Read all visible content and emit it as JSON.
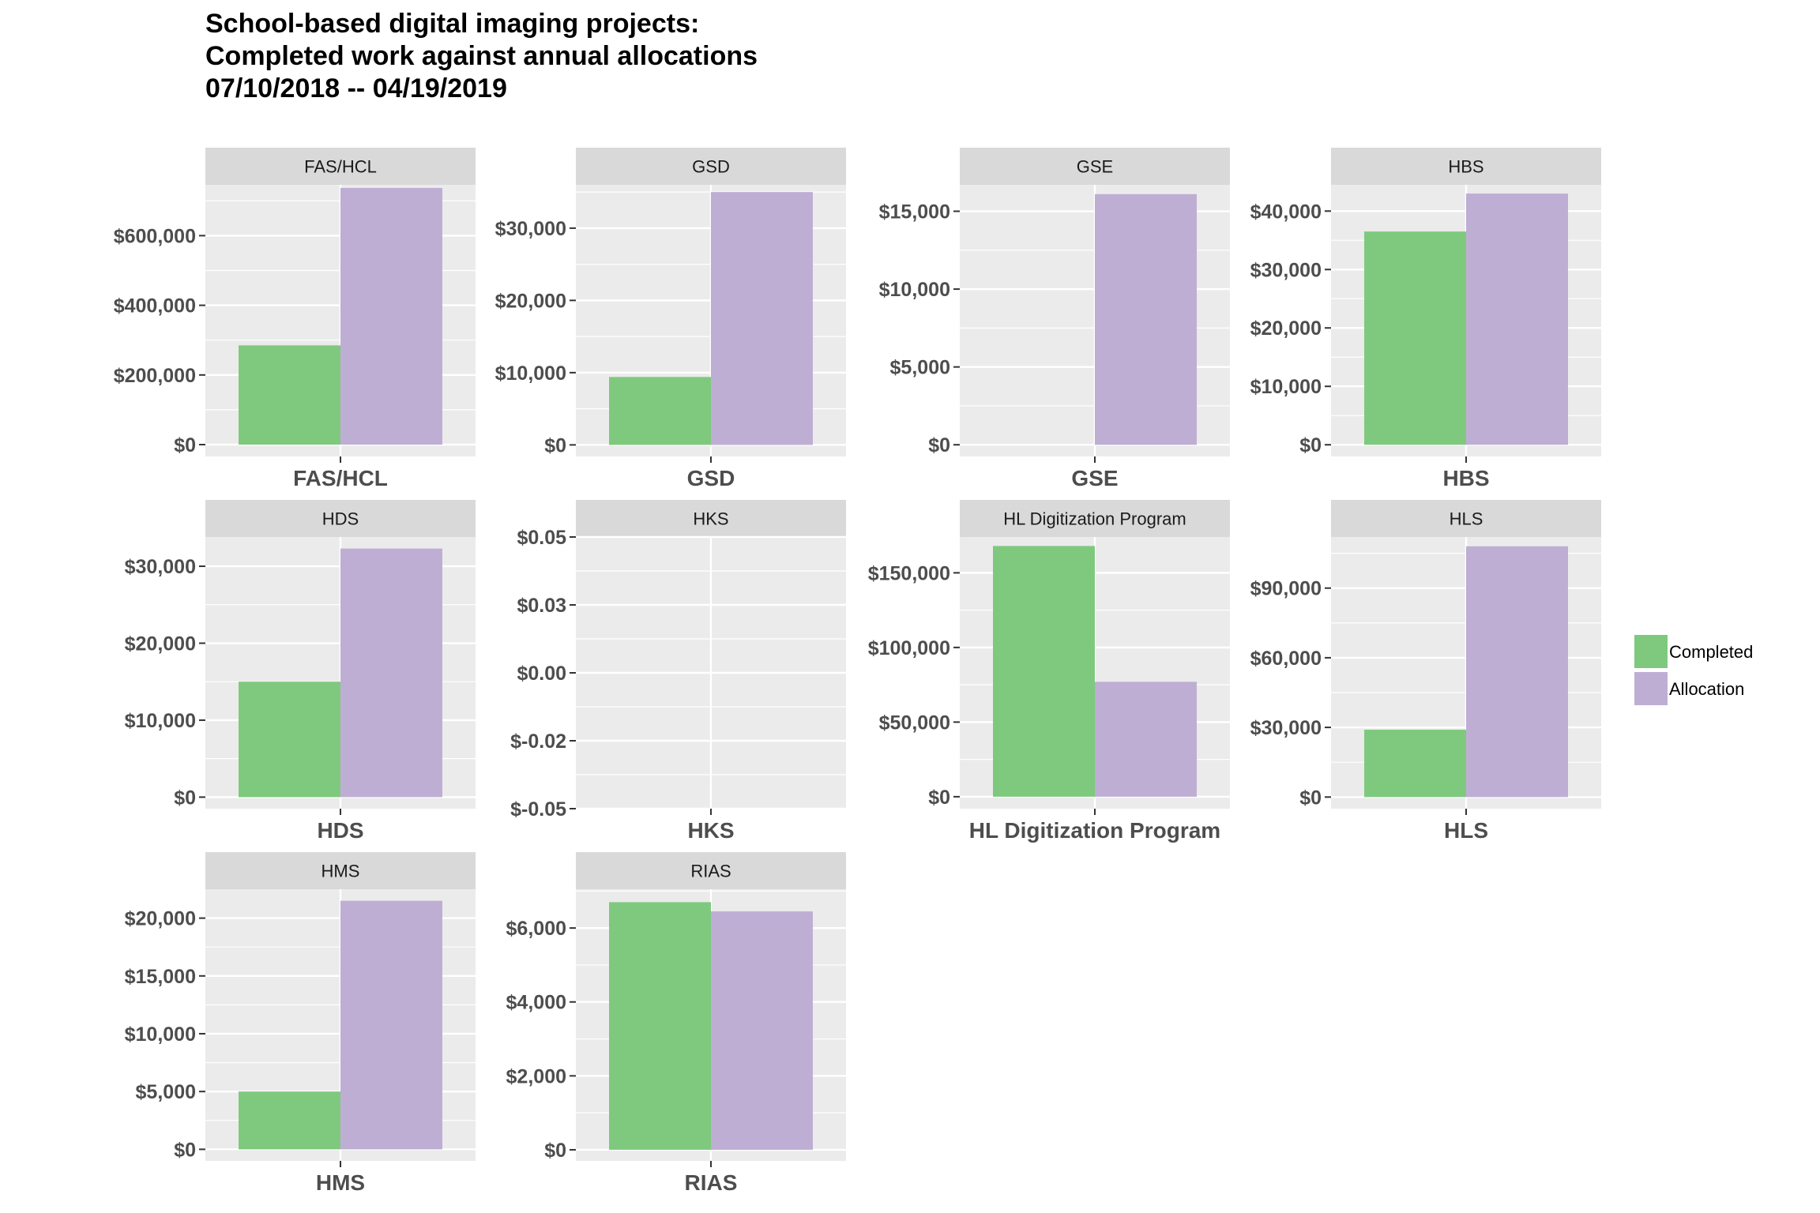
{
  "title_lines": [
    "School-based digital imaging projects:",
    "Completed work against annual allocations",
    "07/10/2018 -- 04/19/2019"
  ],
  "colors": {
    "completed": "#7fc97f",
    "allocation": "#beaed4",
    "panel_background": "#ebebeb",
    "strip_background": "#d9d9d9",
    "grid": "#ffffff"
  },
  "legend": [
    {
      "label": "Completed",
      "color": "#7fc97f"
    },
    {
      "label": "Allocation",
      "color": "#beaed4"
    }
  ],
  "chart_data": {
    "type": "bar",
    "layout": "faceted",
    "series_names": [
      "Completed",
      "Allocation"
    ],
    "panels": [
      {
        "title": "FAS/HCL",
        "category": "FAS/HCL",
        "completed": 285000,
        "allocation": 737000,
        "ylim": [
          -34000,
          746000
        ],
        "ticks": [
          0,
          200000,
          400000,
          600000
        ],
        "tick_labels": [
          "$0",
          "$200,000",
          "$400,000",
          "$600,000"
        ]
      },
      {
        "title": "GSD",
        "category": "GSD",
        "completed": 9400,
        "allocation": 35000,
        "ylim": [
          -1600,
          36000
        ],
        "ticks": [
          0,
          10000,
          20000,
          30000
        ],
        "tick_labels": [
          "$0",
          "$10,000",
          "$20,000",
          "$30,000"
        ]
      },
      {
        "title": "GSE",
        "category": "GSE",
        "completed": 0,
        "allocation": 16100,
        "ylim": [
          -750,
          16700
        ],
        "ticks": [
          0,
          5000,
          10000,
          15000
        ],
        "tick_labels": [
          "$0",
          "$5,000",
          "$10,000",
          "$15,000"
        ]
      },
      {
        "title": "HBS",
        "category": "HBS",
        "completed": 36500,
        "allocation": 43000,
        "ylim": [
          -2000,
          44500
        ],
        "ticks": [
          0,
          10000,
          20000,
          30000,
          40000
        ],
        "tick_labels": [
          "$0",
          "$10,000",
          "$20,000",
          "$30,000",
          "$40,000"
        ]
      },
      {
        "title": "HDS",
        "category": "HDS",
        "completed": 15000,
        "allocation": 32300,
        "ylim": [
          -1500,
          33800
        ],
        "ticks": [
          0,
          10000,
          20000,
          30000
        ],
        "tick_labels": [
          "$0",
          "$10,000",
          "$20,000",
          "$30,000"
        ]
      },
      {
        "title": "HKS",
        "category": "HKS",
        "completed": 0,
        "allocation": 0,
        "ylim": [
          -0.05,
          0.05
        ],
        "ticks": [
          -0.05,
          -0.025,
          0,
          0.025,
          0.05
        ],
        "tick_labels": [
          "$-0.05",
          "$-0.02",
          "$0.00",
          "$0.03",
          "$0.05"
        ]
      },
      {
        "title": "HL Digitization Program",
        "category": "HL Digitization Program",
        "completed": 168000,
        "allocation": 77000,
        "ylim": [
          -8000,
          174000
        ],
        "ticks": [
          0,
          50000,
          100000,
          150000
        ],
        "tick_labels": [
          "$0",
          "$50,000",
          "$100,000",
          "$150,000"
        ]
      },
      {
        "title": "HLS",
        "category": "HLS",
        "completed": 29000,
        "allocation": 108000,
        "ylim": [
          -5000,
          112000
        ],
        "ticks": [
          0,
          30000,
          60000,
          90000
        ],
        "tick_labels": [
          "$0",
          "$30,000",
          "$60,000",
          "$90,000"
        ]
      },
      {
        "title": "HMS",
        "category": "HMS",
        "completed": 5000,
        "allocation": 21500,
        "ylim": [
          -1000,
          22500
        ],
        "ticks": [
          0,
          5000,
          10000,
          15000,
          20000
        ],
        "tick_labels": [
          "$0",
          "$5,000",
          "$10,000",
          "$15,000",
          "$20,000"
        ]
      },
      {
        "title": "RIAS",
        "category": "RIAS",
        "completed": 6700,
        "allocation": 6450,
        "ylim": [
          -300,
          7050
        ],
        "ticks": [
          0,
          2000,
          4000,
          6000
        ],
        "tick_labels": [
          "$0",
          "$2,000",
          "$4,000",
          "$6,000"
        ]
      }
    ]
  }
}
